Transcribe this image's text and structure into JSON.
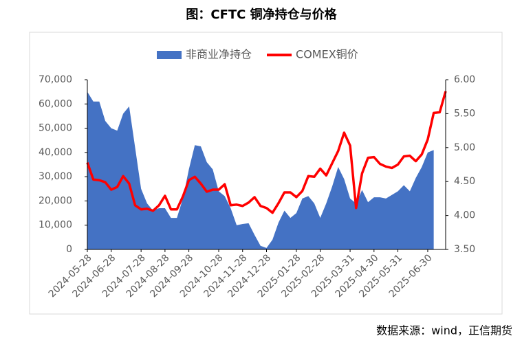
{
  "chart_data": {
    "type": "area-line",
    "title": "图：CFTC 铜净持仓与价格",
    "source": "数据来源：wind，正信期货",
    "categories": [
      "2024-05-28",
      null,
      null,
      null,
      "2024-06-28",
      null,
      null,
      null,
      null,
      "2024-07-28",
      null,
      null,
      null,
      "2024-08-28",
      null,
      null,
      null,
      "2024-09-28",
      null,
      null,
      null,
      null,
      "2024-10-28",
      null,
      null,
      null,
      "2024-11-28",
      null,
      null,
      null,
      "2024-12-28",
      null,
      null,
      null,
      null,
      "2025-01-28",
      null,
      null,
      null,
      "2025-02-28",
      null,
      null,
      null,
      null,
      "2025-03-31",
      null,
      null,
      null,
      "2025-04-30",
      null,
      null,
      null,
      "2025-05-31",
      null,
      null,
      null,
      null,
      "2025-06-30",
      null,
      null,
      null
    ],
    "series": [
      {
        "name": "非商业净持仓",
        "type": "area",
        "axis": "y",
        "color": "#4472c4",
        "values": [
          65000,
          61000,
          61000,
          53000,
          50000,
          49000,
          56000,
          59000,
          42000,
          25000,
          19000,
          16000,
          17000,
          17000,
          13000,
          13000,
          21000,
          33000,
          43000,
          42500,
          36000,
          33000,
          24000,
          22000,
          17000,
          10000,
          10500,
          10800,
          6000,
          1500,
          600,
          4000,
          11000,
          16000,
          13000,
          15000,
          21000,
          22000,
          19000,
          13000,
          19000,
          26000,
          34000,
          29000,
          21000,
          19000,
          24500,
          19500,
          21500,
          21500,
          21000,
          22500,
          24000,
          26500,
          24000,
          29500,
          34000,
          40000,
          41000,
          null,
          null
        ]
      },
      {
        "name": "COMEX铜价",
        "type": "line",
        "axis": "y2",
        "color": "#ff0000",
        "values": [
          4.78,
          4.53,
          4.52,
          4.49,
          4.38,
          4.42,
          4.58,
          4.47,
          4.15,
          4.09,
          4.1,
          4.07,
          4.15,
          4.29,
          4.09,
          4.09,
          4.28,
          4.52,
          4.57,
          4.47,
          4.35,
          4.38,
          4.38,
          4.46,
          4.15,
          4.16,
          4.14,
          4.19,
          4.27,
          4.14,
          4.11,
          4.04,
          4.18,
          4.34,
          4.34,
          4.27,
          4.36,
          4.58,
          4.57,
          4.69,
          4.59,
          4.77,
          4.95,
          5.22,
          5.03,
          4.11,
          4.62,
          4.85,
          4.86,
          4.76,
          4.72,
          4.7,
          4.75,
          4.87,
          4.88,
          4.8,
          4.9,
          5.12,
          5.51,
          5.52,
          5.83
        ]
      }
    ],
    "ylim": [
      0,
      70000
    ],
    "yticks": [
      0,
      {
        "value": 10000,
        "label": "10,000"
      },
      {
        "value": 20000,
        "label": "20,000"
      },
      {
        "value": 30000,
        "label": "30,000"
      },
      {
        "value": 40000,
        "label": "40,000"
      },
      {
        "value": 50000,
        "label": "50,000"
      },
      {
        "value": 60000,
        "label": "60,000"
      },
      {
        "value": 70000,
        "label": "70,000"
      }
    ],
    "y2lim": [
      3.5,
      6
    ],
    "y2ticks": [
      {
        "value": 3.5,
        "label": "3.50"
      },
      {
        "value": 4,
        "label": "4.00"
      },
      {
        "value": 4.5,
        "label": "4.50"
      },
      {
        "value": 5,
        "label": "5.00"
      },
      {
        "value": 5.5,
        "label": "5.50"
      },
      {
        "value": 6,
        "label": "6.00"
      }
    ],
    "legend": "top"
  }
}
